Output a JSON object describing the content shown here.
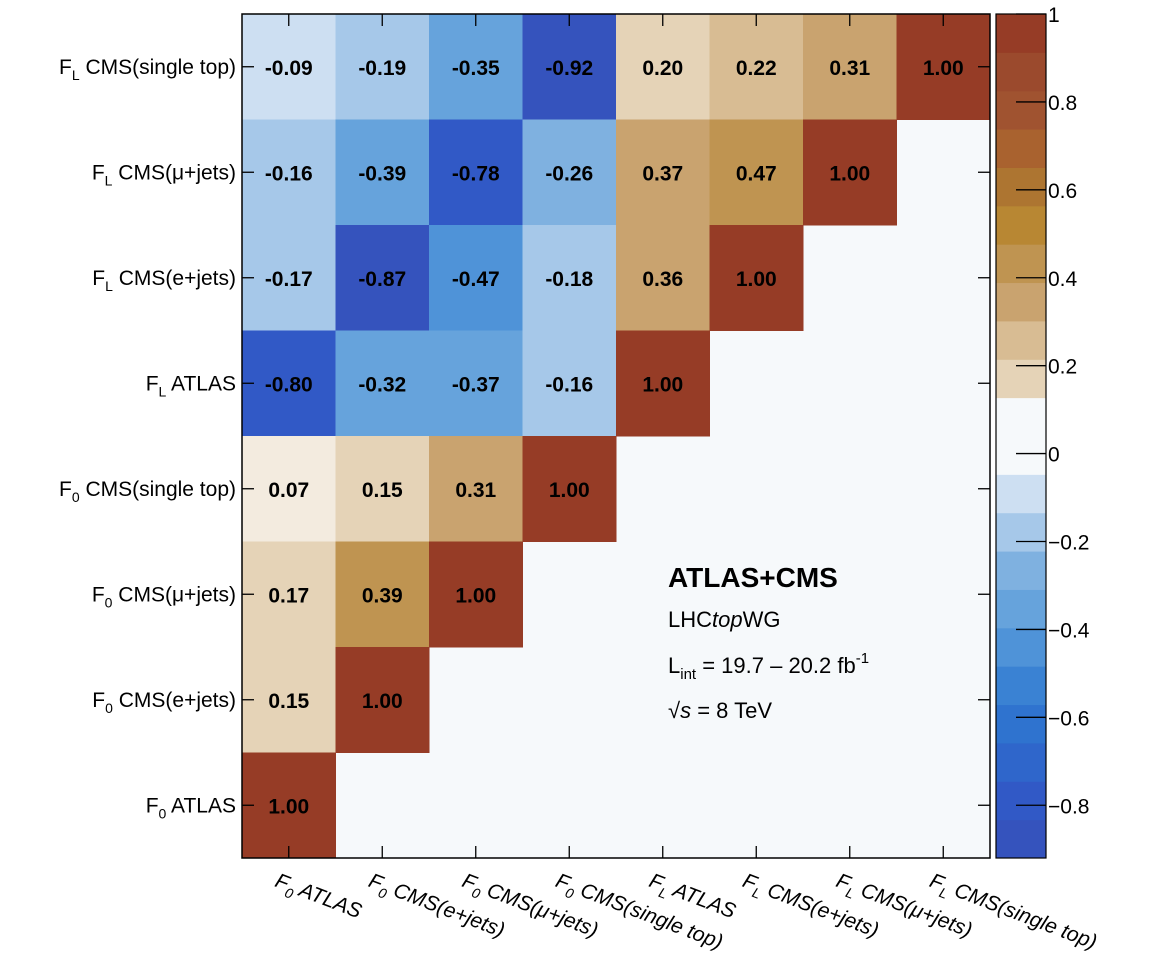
{
  "chart_data": {
    "type": "heatmap",
    "title": "",
    "xlabel": "",
    "ylabel": "",
    "x_categories": [
      {
        "sym": "F",
        "sub": "0",
        "name": "ATLAS"
      },
      {
        "sym": "F",
        "sub": "0",
        "name": "CMS(e+jets)"
      },
      {
        "sym": "F",
        "sub": "0",
        "name": "CMS(μ+jets)"
      },
      {
        "sym": "F",
        "sub": "0",
        "name": "CMS(single top)"
      },
      {
        "sym": "F",
        "sub": "L",
        "name": "ATLAS"
      },
      {
        "sym": "F",
        "sub": "L",
        "name": "CMS(e+jets)"
      },
      {
        "sym": "F",
        "sub": "L",
        "name": "CMS(μ+jets)"
      },
      {
        "sym": "F",
        "sub": "L",
        "name": "CMS(single top)"
      }
    ],
    "y_categories_top_to_bottom": [
      {
        "sym": "F",
        "sub": "L",
        "name": "CMS(single top)"
      },
      {
        "sym": "F",
        "sub": "L",
        "name": "CMS(μ+jets)"
      },
      {
        "sym": "F",
        "sub": "L",
        "name": "CMS(e+jets)"
      },
      {
        "sym": "F",
        "sub": "L",
        "name": "ATLAS"
      },
      {
        "sym": "F",
        "sub": "0",
        "name": "CMS(single top)"
      },
      {
        "sym": "F",
        "sub": "0",
        "name": "CMS(μ+jets)"
      },
      {
        "sym": "F",
        "sub": "0",
        "name": "CMS(e+jets)"
      },
      {
        "sym": "F",
        "sub": "0",
        "name": "ATLAS"
      }
    ],
    "values_top_to_bottom": [
      [
        "-0.09",
        "-0.19",
        "-0.35",
        "-0.92",
        "0.20",
        "0.22",
        "0.31",
        "1.00"
      ],
      [
        "-0.16",
        "-0.39",
        "-0.78",
        "-0.26",
        "0.37",
        "0.47",
        "1.00"
      ],
      [
        "-0.17",
        "-0.87",
        "-0.47",
        "-0.18",
        "0.36",
        "1.00"
      ],
      [
        "-0.80",
        "-0.32",
        "-0.37",
        "-0.16",
        "1.00"
      ],
      [
        "0.07",
        "0.15",
        "0.31",
        "1.00"
      ],
      [
        "0.17",
        "0.39",
        "1.00"
      ],
      [
        "0.15",
        "1.00"
      ],
      [
        "1.00"
      ]
    ],
    "color_scale": {
      "zmin": -0.92,
      "zmax": 1.0,
      "ticks": [
        "1",
        "0.8",
        "0.6",
        "0.4",
        "0.2",
        "0",
        "−0.2",
        "−0.4",
        "−0.6",
        "−0.8"
      ],
      "tick_values": [
        1.0,
        0.8,
        0.6,
        0.4,
        0.2,
        0.0,
        -0.2,
        -0.4,
        -0.6,
        -0.8
      ],
      "empty_cell_color": "#f6f9fb"
    },
    "annotation": {
      "title": "ATLAS+CMS",
      "group_pre": "LHC",
      "group_italic": "top",
      "group_post": "WG",
      "lumi_pre": "L",
      "lumi_sub": "int",
      "lumi_value": " = 19.7 – 20.2 fb",
      "lumi_sup": "-1",
      "energy_sqrt": "√",
      "energy_var": "s",
      "energy_value": " = 8 TeV"
    }
  }
}
